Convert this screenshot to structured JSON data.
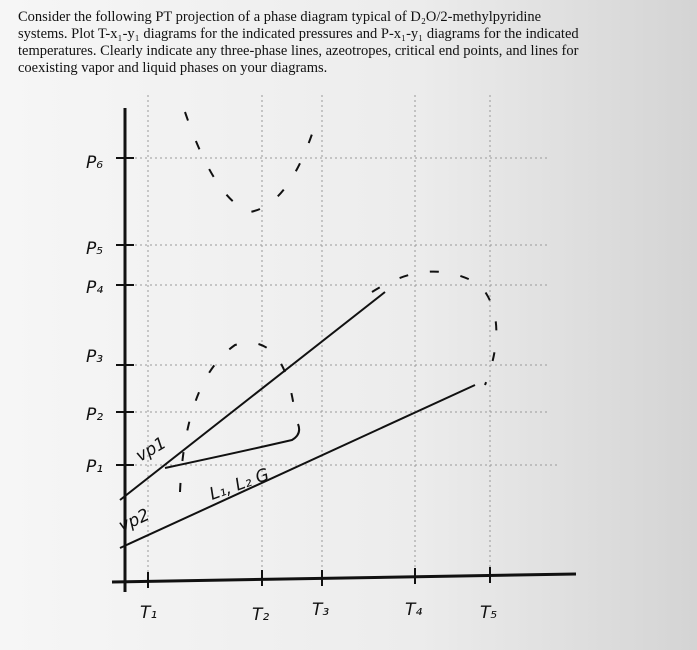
{
  "problem": {
    "lines": [
      "Consider the following PT projection of a phase diagram typical of D₂O/2-methylpyridine",
      "systems. Plot T-x₁-y₁ diagrams for the indicated pressures and P-x₁-y₁ diagrams for the indicated",
      "temperatures. Clearly indicate any three-phase lines, azeotropes, critical end points, and lines for",
      "coexisting vapor and liquid phases on your diagrams."
    ]
  },
  "diagram": {
    "pressure_labels": [
      "P₆",
      "P₅",
      "P₄",
      "P₃",
      "P₂",
      "P₁"
    ],
    "temperature_labels": [
      "T₁",
      "T₂",
      "T₃",
      "T₄",
      "T₅"
    ],
    "curve_labels": [
      "vp1",
      "vp2",
      "L₁, L₂ G"
    ]
  }
}
